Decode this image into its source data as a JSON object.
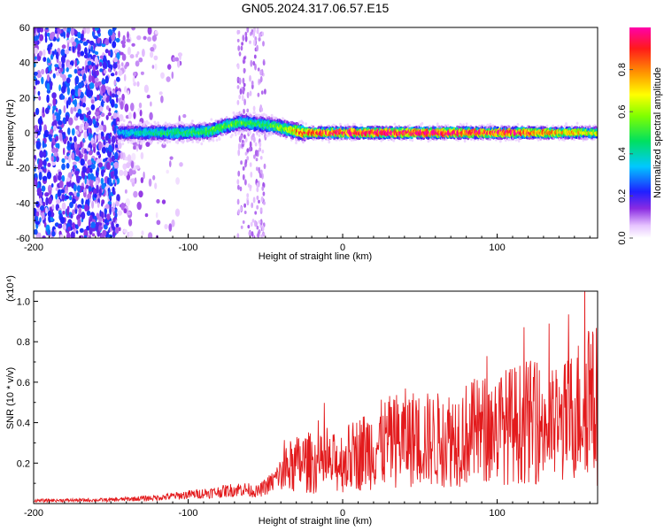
{
  "title": "GN05.2024.317.06.57.E15",
  "chart_data": [
    {
      "type": "heatmap",
      "xlabel": "Height of straight line (km)",
      "ylabel": "Frequency (Hz)",
      "xlim": [
        -200,
        165
      ],
      "ylim": [
        -60,
        60
      ],
      "x_ticks": [
        -200,
        -100,
        0,
        100
      ],
      "y_ticks": [
        -60,
        -40,
        -20,
        0,
        20,
        40,
        60
      ],
      "colorbar": {
        "label": "Normalized spectral amplitude",
        "range": [
          0.0,
          1.0
        ],
        "ticks": [
          0.0,
          0.2,
          0.4,
          0.6,
          0.8
        ],
        "tick_labels": [
          "0.0",
          "0.2",
          "0.4",
          "0.6",
          "0.8"
        ]
      },
      "ridge": {
        "x": [
          -145,
          -120,
          -100,
          -85,
          -75,
          -65,
          -55,
          -45,
          -35,
          -25,
          -15,
          0,
          50,
          100,
          165
        ],
        "freq": [
          0,
          0,
          0,
          1,
          4,
          6,
          5,
          4,
          2,
          0,
          0,
          0,
          0,
          0,
          0
        ],
        "peak_amplitude": [
          0.35,
          0.45,
          0.5,
          0.55,
          0.55,
          0.55,
          0.5,
          0.55,
          0.65,
          0.9,
          0.9,
          0.95,
          1.0,
          0.95,
          0.7
        ]
      },
      "noise_region": {
        "x": [
          -200,
          -145
        ],
        "amplitude": [
          0.05,
          0.3
        ]
      },
      "noise_column": {
        "x": [
          -68,
          -50
        ],
        "amplitude": [
          0.05,
          0.12
        ]
      }
    },
    {
      "type": "line",
      "xlabel": "Height of straight line (km)",
      "ylabel": "SNR (10 * v/v)",
      "y_multiplier": "(x10⁴)",
      "xlim": [
        -200,
        165
      ],
      "ylim": [
        0,
        1.05
      ],
      "x_ticks": [
        -200,
        -100,
        0,
        100
      ],
      "y_ticks": [
        0.2,
        0.4,
        0.6,
        0.8,
        1.0
      ],
      "envelope": {
        "x": [
          -200,
          -150,
          -120,
          -100,
          -80,
          -65,
          -55,
          -45,
          -35,
          -25,
          -10,
          0,
          20,
          40,
          60,
          80,
          100,
          120,
          140,
          155,
          160,
          165
        ],
        "y": [
          0.02,
          0.025,
          0.04,
          0.06,
          0.08,
          0.1,
          0.08,
          0.15,
          0.28,
          0.33,
          0.3,
          0.34,
          0.45,
          0.52,
          0.5,
          0.55,
          0.6,
          0.65,
          0.6,
          0.78,
          0.95,
          0.55
        ]
      },
      "color": "#e31a1c"
    }
  ]
}
